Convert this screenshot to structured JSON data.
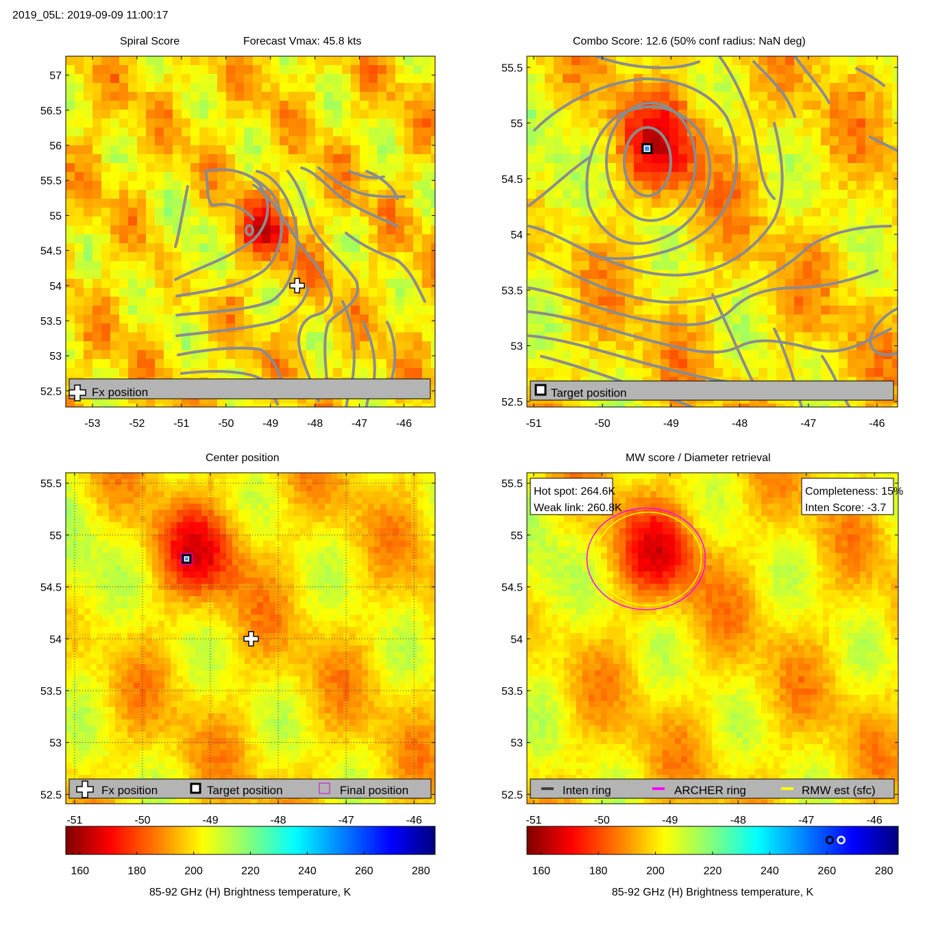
{
  "figure_title": "2019_05L: 2019-09-09 11:00:17",
  "colors": {
    "frame": "#000000",
    "contour": "#8c8c8c",
    "legend_bg": "#b4b4b4",
    "archer_ring": "#ff00ff",
    "rmw_ring": "#ffff00",
    "inten_ring": "#404040",
    "final_marker": "#cc00cc"
  },
  "panels": {
    "spiral": {
      "title_left": "Spiral Score",
      "title_right": "Forecast Vmax: 45.8 kts",
      "legend": {
        "fx": "Fx position"
      }
    },
    "combo": {
      "title": "Combo Score: 12.6  (50% conf radius: NaN deg)",
      "legend": {
        "target": "Target position"
      }
    },
    "center": {
      "title": "Center position",
      "legend": {
        "fx": "Fx position",
        "target": "Target position",
        "final": "Final position"
      }
    },
    "mw": {
      "title": "MW score / Diameter retrieval",
      "hot_spot": "Hot spot: 264.6K",
      "weak_link": "Weak link: 260.8K",
      "completeness": "Completeness: 15%",
      "inten_score": "Inten Score: -3.7",
      "legend": {
        "inten": "Inten ring",
        "archer": "ARCHER ring",
        "rmw": "RMW est (sfc)"
      }
    }
  },
  "colorbars": {
    "label": "85-92 GHz (H) Brightness temperature, K",
    "ticks": [
      "160",
      "180",
      "200",
      "220",
      "240",
      "260",
      "280"
    ],
    "range": [
      155,
      285
    ]
  },
  "chart_data": [
    {
      "type": "heatmap",
      "name": "spiral",
      "x_ticks": [
        "-53",
        "-52",
        "-51",
        "-50",
        "-49",
        "-48",
        "-47",
        "-46"
      ],
      "y_ticks": [
        "57",
        "56.5",
        "56",
        "55.5",
        "55",
        "54.5",
        "54",
        "53.5",
        "53",
        "52.5"
      ],
      "xlim": [
        -53.6,
        -45.3
      ],
      "ylim": [
        52.27,
        57.27
      ],
      "fx_position": {
        "lon": -48.4,
        "lat": 54.0
      }
    },
    {
      "type": "heatmap",
      "name": "combo",
      "x_ticks": [
        "-51",
        "-50",
        "-49",
        "-48",
        "-47",
        "-46"
      ],
      "y_ticks": [
        "55.5",
        "55",
        "54.5",
        "54",
        "53.5",
        "53",
        "52.5"
      ],
      "xlim": [
        -51.1,
        -45.7
      ],
      "ylim": [
        52.45,
        55.6
      ],
      "target_position": {
        "lon": -49.35,
        "lat": 54.77
      }
    },
    {
      "type": "heatmap",
      "name": "center",
      "x_ticks": [
        "-51",
        "-50",
        "-49",
        "-48",
        "-47",
        "-46"
      ],
      "y_ticks": [
        "55.5",
        "55",
        "54.5",
        "54",
        "53.5",
        "53",
        "52.5"
      ],
      "xlim": [
        -51.13,
        -45.69
      ],
      "ylim": [
        52.41,
        55.6
      ],
      "grid": true,
      "fx_position": {
        "lon": -48.4,
        "lat": 54.0
      },
      "target_position": {
        "lon": -49.35,
        "lat": 54.77
      },
      "final_position": {
        "lon": -49.35,
        "lat": 54.77
      }
    },
    {
      "type": "heatmap",
      "name": "mw",
      "x_ticks": [
        "-51",
        "-50",
        "-49",
        "-48",
        "-47",
        "-46"
      ],
      "y_ticks": [
        "55.5",
        "55",
        "54.5",
        "54",
        "53.5",
        "53",
        "52.5"
      ],
      "xlim": [
        -51.1,
        -45.65
      ],
      "ylim": [
        52.41,
        55.6
      ],
      "archer_ring": {
        "lon": -49.35,
        "lat": 54.77,
        "r_lon": 0.87,
        "r_lat": 0.49
      },
      "rmw_ring": {
        "lon": -49.35,
        "lat": 54.77,
        "r_lon": 0.78,
        "r_lat": 0.45
      },
      "colorbar_markers": [
        261,
        265
      ]
    }
  ]
}
